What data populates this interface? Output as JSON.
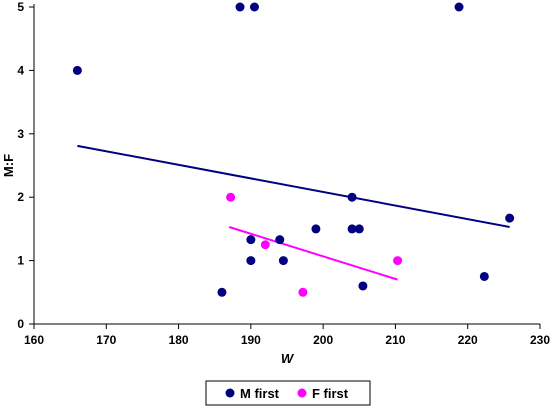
{
  "chart_data": {
    "type": "scatter",
    "title": "",
    "xlabel": "W",
    "ylabel": "M:F",
    "xlim": [
      160,
      230
    ],
    "ylim": [
      0,
      5
    ],
    "x_ticks": [
      160,
      170,
      180,
      190,
      200,
      210,
      220,
      230
    ],
    "y_ticks": [
      0,
      1,
      2,
      3,
      4,
      5
    ],
    "grid": false,
    "legend_position": "bottom",
    "series": [
      {
        "name": "M first",
        "color": "#000080",
        "points": [
          [
            166,
            4
          ],
          [
            188.5,
            5
          ],
          [
            190.5,
            5
          ],
          [
            218.8,
            5
          ],
          [
            204,
            2
          ],
          [
            225.8,
            1.67
          ],
          [
            199,
            1.5
          ],
          [
            204,
            1.5
          ],
          [
            205,
            1.5
          ],
          [
            190,
            1.33
          ],
          [
            194,
            1.33
          ],
          [
            190,
            1
          ],
          [
            194.5,
            1
          ],
          [
            222.3,
            0.75
          ],
          [
            205.5,
            0.6
          ],
          [
            186,
            0.5
          ]
        ],
        "trendline": {
          "x": [
            166,
            225.8
          ],
          "y": [
            2.81,
            1.53
          ]
        }
      },
      {
        "name": "F first",
        "color": "#FF00FF",
        "points": [
          [
            187.2,
            2
          ],
          [
            192,
            1.25
          ],
          [
            210.3,
            1
          ],
          [
            197.2,
            0.5
          ]
        ],
        "trendline": {
          "x": [
            187,
            210.3
          ],
          "y": [
            1.53,
            0.7
          ]
        }
      }
    ]
  }
}
